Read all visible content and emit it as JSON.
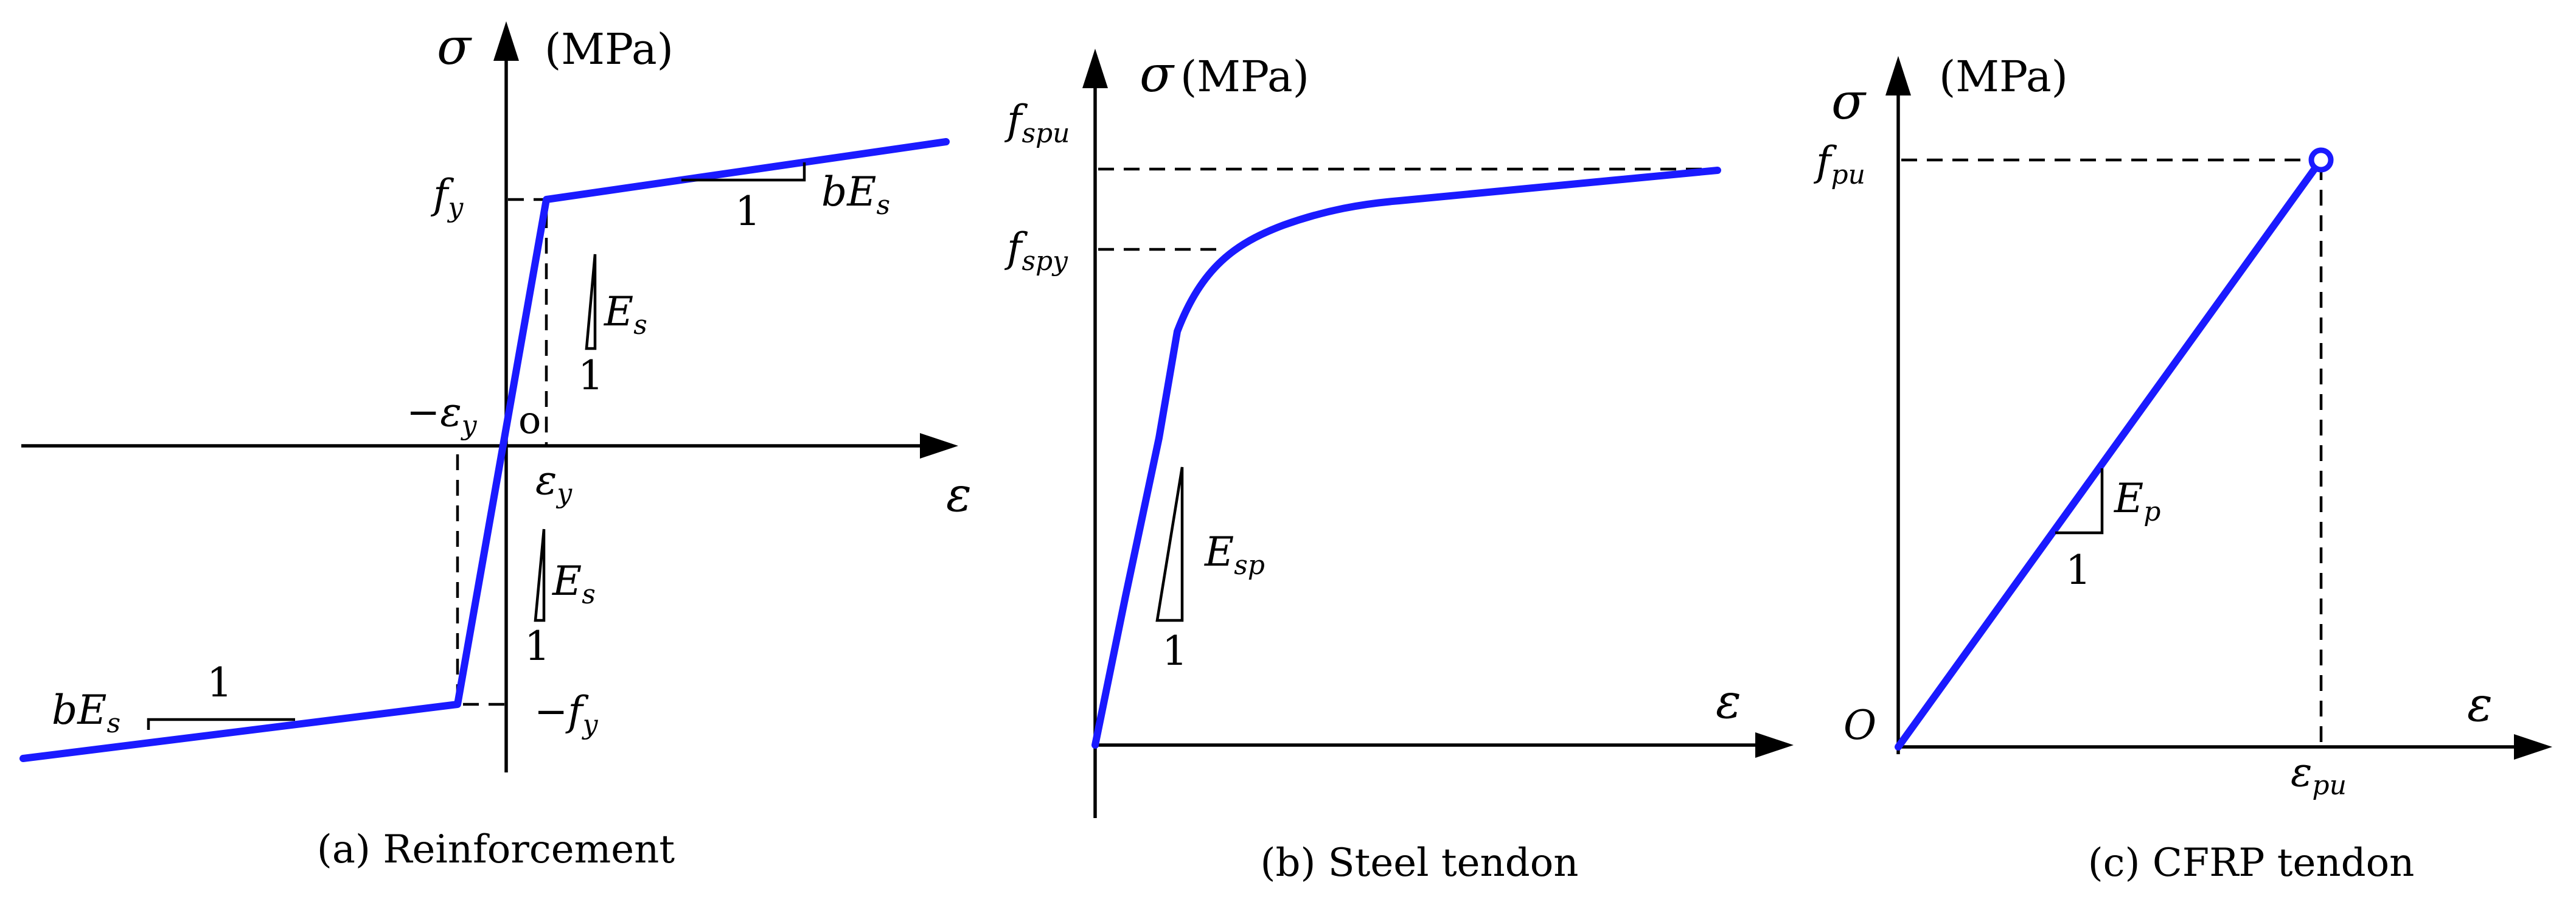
{
  "panel_a": {
    "caption": "(a) Reinforcement",
    "y_symbol": "σ",
    "y_unit": "(MPa)",
    "x_symbol": "ε",
    "origin": "o",
    "fy": {
      "base": "f",
      "sub": "y"
    },
    "neg_fy": {
      "prefix": "−",
      "base": "f",
      "sub": "y"
    },
    "eps_y": {
      "base": "ε",
      "sub": "y"
    },
    "neg_eps_y": {
      "prefix": "−",
      "base": "ε",
      "sub": "y"
    },
    "upper_slope": {
      "run": "1",
      "label_b": "b",
      "label_E": "E",
      "label_sub": "s"
    },
    "lower_slope": {
      "run": "1",
      "label_b": "b",
      "label_E": "E",
      "label_sub": "s"
    },
    "elastic_upper": {
      "rise": "1",
      "label_E": "E",
      "label_sub": "s"
    },
    "elastic_lower": {
      "rise": "1",
      "label_E": "E",
      "label_sub": "s"
    },
    "curve_color": "#1a1aff"
  },
  "panel_b": {
    "caption": "(b) Steel tendon",
    "y_symbol": "σ",
    "y_unit": "(MPa)",
    "x_symbol": "ε",
    "fspu": {
      "base": "f",
      "sub": "spu"
    },
    "fspy": {
      "base": "f",
      "sub": "spy"
    },
    "slope": {
      "rise": "1",
      "label_E": "E",
      "label_sub": "sp"
    },
    "curve_color": "#1a1aff"
  },
  "panel_c": {
    "caption": "(c) CFRP tendon",
    "y_symbol": "σ",
    "y_unit": "(MPa)",
    "x_symbol": "ε",
    "origin": "O",
    "fpu": {
      "base": "f",
      "sub": "pu"
    },
    "eps_pu": {
      "base": "ε",
      "sub": "pu"
    },
    "slope": {
      "run": "1",
      "label_E": "E",
      "label_sub": "p"
    },
    "curve_color": "#1a1aff"
  }
}
